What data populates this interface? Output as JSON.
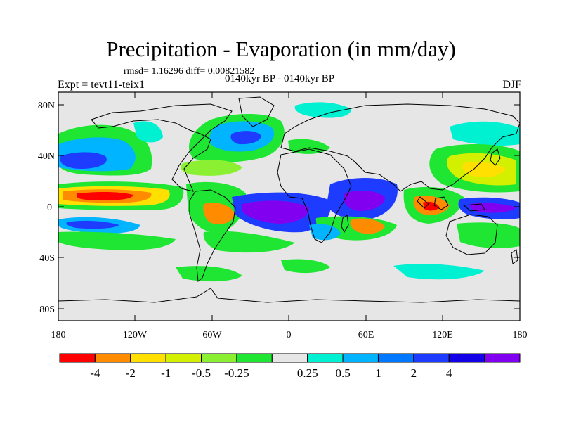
{
  "title": "Precipitation - Evaporation (in mm/day)",
  "stats": "rmsd= 1.16296 diff= 0.00821582",
  "period": "0140kyr BP - 0140kyr BP",
  "experiment": "Expt = tevt11-teix1",
  "season": "DJF",
  "lat_ticks": [
    "80N",
    "40N",
    "0",
    "40S",
    "80S"
  ],
  "lon_ticks": [
    "180",
    "120W",
    "60W",
    "0",
    "60E",
    "120E",
    "180"
  ],
  "colorbar": {
    "colors": [
      "#ff0000",
      "#ff8c00",
      "#ffe000",
      "#d2f000",
      "#8cf032",
      "#1ee632",
      "#e6e6e6",
      "#00f0d2",
      "#00b4ff",
      "#0078ff",
      "#1e3cff",
      "#1400e6",
      "#8200f0"
    ],
    "labels": [
      "-4",
      "-2",
      "-1",
      "-0.5",
      "-0.25",
      "0.25",
      "0.5",
      "1",
      "2",
      "4"
    ]
  },
  "map_background": "#e6e6e6"
}
